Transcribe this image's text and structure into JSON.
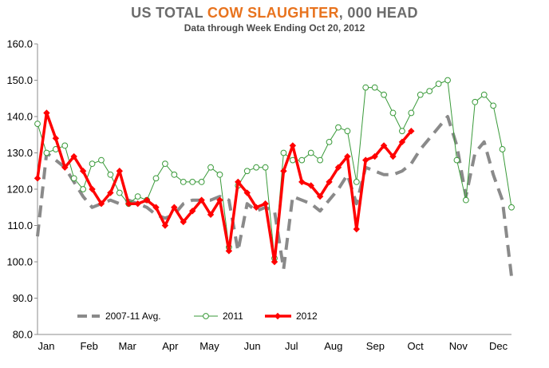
{
  "title": {
    "part1": "US TOTAL ",
    "part2": "COW SLAUGHTER",
    "part3": ", 000 HEAD",
    "color_main": "#6b6b6b",
    "color_highlight": "#e8731e"
  },
  "subtitle": "Data through Week Ending Oct 20, 2012",
  "chart_data": {
    "type": "line",
    "title": "US TOTAL COW SLAUGHTER, 000 HEAD",
    "subtitle": "Data through Week Ending Oct 20, 2012",
    "xlabel": "",
    "ylabel": "",
    "ylim": [
      80,
      160
    ],
    "yticks": [
      "80.0",
      "90.0",
      "100.0",
      "110.0",
      "120.0",
      "130.0",
      "140.0",
      "150.0",
      "160.0"
    ],
    "xlim": [
      1,
      53
    ],
    "months": [
      {
        "label": "Jan",
        "week": 1
      },
      {
        "label": "Feb",
        "week": 5.7
      },
      {
        "label": "Mar",
        "week": 9.9
      },
      {
        "label": "Apr",
        "week": 14.6
      },
      {
        "label": "May",
        "week": 18.9
      },
      {
        "label": "Jun",
        "week": 23.6
      },
      {
        "label": "Jul",
        "week": 27.9
      },
      {
        "label": "Aug",
        "week": 32.5
      },
      {
        "label": "Sep",
        "week": 37.1
      },
      {
        "label": "Oct",
        "week": 41.5
      },
      {
        "label": "Nov",
        "week": 46.2
      },
      {
        "label": "Dec",
        "week": 50.6
      }
    ],
    "grid": false,
    "legend_position": "bottom",
    "series": [
      {
        "name": "2007-11 Avg.",
        "color": "#8a8a8a",
        "style": "dashed",
        "x": [
          1,
          2,
          3,
          4,
          5,
          6,
          7,
          8,
          9,
          10,
          11,
          12,
          13,
          14,
          15,
          16,
          17,
          18,
          19,
          20,
          21,
          22,
          23,
          24,
          25,
          26,
          27,
          28,
          29,
          30,
          31,
          32,
          33,
          34,
          35,
          36,
          37,
          38,
          39,
          40,
          41,
          42,
          43,
          44,
          45,
          46,
          47,
          48,
          49,
          50,
          51,
          52,
          53
        ],
        "values": [
          107,
          130,
          128,
          126,
          122,
          118,
          115,
          116,
          117,
          116,
          117,
          116,
          115,
          113,
          112,
          113,
          116,
          117,
          117,
          117,
          118,
          117,
          103,
          116,
          114,
          115,
          114,
          98,
          118,
          117,
          116,
          114,
          117,
          120,
          124,
          116,
          126,
          125,
          124,
          124,
          125,
          127,
          131,
          134,
          137,
          140,
          132,
          118,
          130,
          133,
          124,
          117,
          96
        ]
      },
      {
        "name": "2011",
        "color": "#3a9a3a",
        "style": "solid-open-circles",
        "x": [
          1,
          2,
          3,
          4,
          5,
          6,
          7,
          8,
          9,
          10,
          11,
          12,
          13,
          14,
          15,
          16,
          17,
          18,
          19,
          20,
          21,
          22,
          23,
          24,
          25,
          26,
          27,
          28,
          29,
          30,
          31,
          32,
          33,
          34,
          35,
          36,
          37,
          38,
          39,
          40,
          41,
          42,
          43,
          44,
          45,
          46,
          47,
          48,
          49,
          50,
          51,
          52,
          53
        ],
        "values": [
          138,
          130,
          131,
          132,
          123,
          120,
          127,
          128,
          124,
          119,
          116,
          118,
          117,
          123,
          127,
          124,
          122,
          122,
          122,
          126,
          124,
          104,
          121,
          125,
          126,
          126,
          101,
          130,
          128,
          128,
          130,
          128,
          133,
          137,
          136,
          122,
          148,
          148,
          146,
          141,
          136,
          141,
          146,
          147,
          149,
          150,
          128,
          117,
          144,
          146,
          143,
          131,
          115
        ]
      },
      {
        "name": "2012",
        "color": "#ff0000",
        "style": "thick-solid-diamonds",
        "x": [
          1,
          2,
          3,
          4,
          5,
          6,
          7,
          8,
          9,
          10,
          11,
          12,
          13,
          14,
          15,
          16,
          17,
          18,
          19,
          20,
          21,
          22,
          23,
          24,
          25,
          26,
          27,
          28,
          29,
          30,
          31,
          32,
          33,
          34,
          35,
          36,
          37,
          38,
          39,
          40,
          41,
          42
        ],
        "values": [
          123,
          141,
          134,
          126,
          129,
          125,
          120,
          116,
          119,
          125,
          116,
          116,
          117,
          115,
          110,
          115,
          111,
          114,
          117,
          113,
          117,
          103,
          122,
          119,
          115,
          116,
          100,
          125,
          132,
          122,
          121,
          118,
          122,
          126,
          129,
          109,
          128,
          129,
          132,
          129,
          133,
          136
        ]
      }
    ]
  }
}
